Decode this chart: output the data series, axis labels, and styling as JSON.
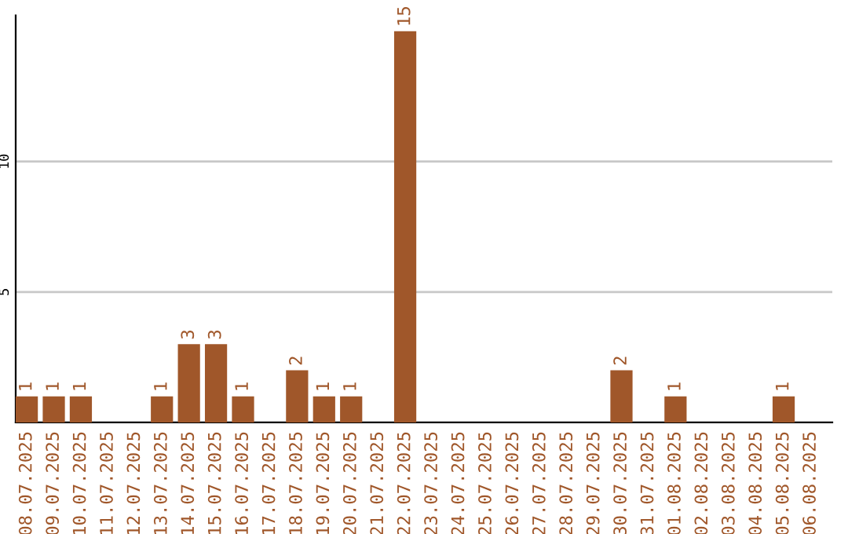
{
  "chart_data": {
    "type": "bar",
    "categories": [
      "08.07.2025",
      "09.07.2025",
      "10.07.2025",
      "11.07.2025",
      "12.07.2025",
      "13.07.2025",
      "14.07.2025",
      "15.07.2025",
      "16.07.2025",
      "17.07.2025",
      "18.07.2025",
      "19.07.2025",
      "20.07.2025",
      "21.07.2025",
      "22.07.2025",
      "23.07.2025",
      "24.07.2025",
      "25.07.2025",
      "26.07.2025",
      "27.07.2025",
      "28.07.2025",
      "29.07.2025",
      "30.07.2025",
      "31.07.2025",
      "01.08.2025",
      "02.08.2025",
      "03.08.2025",
      "04.08.2025",
      "05.08.2025",
      "06.08.2025"
    ],
    "values": [
      1,
      1,
      1,
      0,
      0,
      1,
      3,
      3,
      1,
      0,
      2,
      1,
      1,
      0,
      15,
      0,
      0,
      0,
      0,
      0,
      0,
      0,
      2,
      0,
      1,
      0,
      0,
      0,
      1,
      0
    ],
    "value_labels": [
      "1",
      "1",
      "1",
      null,
      null,
      "1",
      "3",
      "3",
      "1",
      null,
      "2",
      "1",
      "1",
      null,
      "15",
      null,
      null,
      null,
      null,
      null,
      null,
      null,
      "2",
      null,
      "1",
      null,
      null,
      null,
      "1",
      null
    ],
    "color": "#a0572a",
    "ylim": [
      0,
      15.6
    ],
    "yticks": [
      5,
      10
    ],
    "grid": "y",
    "legend": false
  }
}
